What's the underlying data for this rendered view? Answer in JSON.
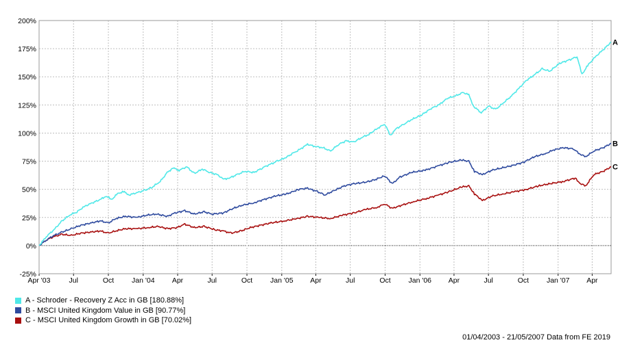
{
  "chart_data": {
    "type": "line",
    "x_range": [
      "2003-04-01",
      "2007-05-21"
    ],
    "ylim": [
      -25,
      200
    ],
    "y_ticks": [
      {
        "value": -25,
        "label": "-25%"
      },
      {
        "value": 0,
        "label": "0%"
      },
      {
        "value": 25,
        "label": "25%"
      },
      {
        "value": 50,
        "label": "50%"
      },
      {
        "value": 75,
        "label": "75%"
      },
      {
        "value": 100,
        "label": "100%"
      },
      {
        "value": 125,
        "label": "125%"
      },
      {
        "value": 150,
        "label": "150%"
      },
      {
        "value": 175,
        "label": "175%"
      },
      {
        "value": 200,
        "label": "200%"
      }
    ],
    "x_ticks": [
      {
        "date": "2003-04-01",
        "label": "Apr '03"
      },
      {
        "date": "2003-07-01",
        "label": "Jul"
      },
      {
        "date": "2003-10-01",
        "label": "Oct"
      },
      {
        "date": "2004-01-01",
        "label": "Jan '04"
      },
      {
        "date": "2004-04-01",
        "label": "Apr"
      },
      {
        "date": "2004-07-01",
        "label": "Jul"
      },
      {
        "date": "2004-10-01",
        "label": "Oct"
      },
      {
        "date": "2005-01-01",
        "label": "Jan '05"
      },
      {
        "date": "2005-04-01",
        "label": "Apr"
      },
      {
        "date": "2005-07-01",
        "label": "Jul"
      },
      {
        "date": "2005-10-01",
        "label": "Oct"
      },
      {
        "date": "2006-01-01",
        "label": "Jan '06"
      },
      {
        "date": "2006-04-01",
        "label": "Apr"
      },
      {
        "date": "2006-07-01",
        "label": "Jul"
      },
      {
        "date": "2006-10-01",
        "label": "Oct"
      },
      {
        "date": "2007-01-01",
        "label": "Jan '07"
      },
      {
        "date": "2007-04-01",
        "label": "Apr"
      }
    ],
    "grid": true,
    "zero_line": "dotted",
    "legend_position": "bottom-left",
    "series": [
      {
        "name": "A - Schroder - Recovery Z Acc in GB [180.88%]",
        "end_label": "A",
        "color": "#4fe8e8",
        "points": [
          [
            "2003-04-01",
            0
          ],
          [
            "2003-04-20",
            8
          ],
          [
            "2003-05-10",
            14
          ],
          [
            "2003-06-01",
            22
          ],
          [
            "2003-06-20",
            27
          ],
          [
            "2003-07-10",
            30
          ],
          [
            "2003-07-31",
            35
          ],
          [
            "2003-08-20",
            38
          ],
          [
            "2003-09-10",
            41
          ],
          [
            "2003-09-25",
            44
          ],
          [
            "2003-10-10",
            41
          ],
          [
            "2003-10-25",
            46
          ],
          [
            "2003-11-10",
            48
          ],
          [
            "2003-11-25",
            45
          ],
          [
            "2003-12-15",
            47
          ],
          [
            "2004-01-05",
            49
          ],
          [
            "2004-01-25",
            52
          ],
          [
            "2004-02-15",
            57
          ],
          [
            "2004-03-05",
            65
          ],
          [
            "2004-03-20",
            69
          ],
          [
            "2004-04-05",
            67
          ],
          [
            "2004-04-25",
            70
          ],
          [
            "2004-05-15",
            64
          ],
          [
            "2004-06-05",
            68
          ],
          [
            "2004-06-25",
            65
          ],
          [
            "2004-07-15",
            63
          ],
          [
            "2004-07-31",
            59
          ],
          [
            "2004-08-15",
            60
          ],
          [
            "2004-09-05",
            63
          ],
          [
            "2004-09-25",
            66
          ],
          [
            "2004-10-20",
            65
          ],
          [
            "2004-11-10",
            69
          ],
          [
            "2004-11-30",
            72
          ],
          [
            "2004-12-20",
            75
          ],
          [
            "2005-01-10",
            78
          ],
          [
            "2005-01-31",
            82
          ],
          [
            "2005-02-20",
            86
          ],
          [
            "2005-03-10",
            90
          ],
          [
            "2005-03-31",
            88
          ],
          [
            "2005-04-20",
            87
          ],
          [
            "2005-05-10",
            84
          ],
          [
            "2005-05-31",
            90
          ],
          [
            "2005-06-20",
            93
          ],
          [
            "2005-07-10",
            92
          ],
          [
            "2005-07-31",
            96
          ],
          [
            "2005-08-20",
            99
          ],
          [
            "2005-09-10",
            104
          ],
          [
            "2005-09-30",
            108
          ],
          [
            "2005-10-15",
            98
          ],
          [
            "2005-10-31",
            104
          ],
          [
            "2005-11-20",
            108
          ],
          [
            "2005-12-10",
            112
          ],
          [
            "2006-01-05",
            116
          ],
          [
            "2006-01-31",
            122
          ],
          [
            "2006-02-20",
            125
          ],
          [
            "2006-03-15",
            131
          ],
          [
            "2006-04-05",
            133
          ],
          [
            "2006-04-25",
            136
          ],
          [
            "2006-05-10",
            134
          ],
          [
            "2006-05-22",
            124
          ],
          [
            "2006-06-12",
            118
          ],
          [
            "2006-07-01",
            124
          ],
          [
            "2006-07-20",
            121
          ],
          [
            "2006-08-10",
            127
          ],
          [
            "2006-08-31",
            133
          ],
          [
            "2006-09-20",
            140
          ],
          [
            "2006-10-10",
            147
          ],
          [
            "2006-10-31",
            152
          ],
          [
            "2006-11-20",
            157
          ],
          [
            "2006-12-10",
            155
          ],
          [
            "2007-01-05",
            162
          ],
          [
            "2007-01-31",
            165
          ],
          [
            "2007-02-20",
            168
          ],
          [
            "2007-03-05",
            152
          ],
          [
            "2007-03-20",
            160
          ],
          [
            "2007-04-10",
            168
          ],
          [
            "2007-04-30",
            174
          ],
          [
            "2007-05-21",
            180.88
          ]
        ]
      },
      {
        "name": "B - MSCI United Kingdom Value in GB [90.77%]",
        "end_label": "B",
        "color": "#2e4a9e",
        "points": [
          [
            "2003-04-01",
            0
          ],
          [
            "2003-04-20",
            5
          ],
          [
            "2003-05-10",
            9
          ],
          [
            "2003-06-01",
            12
          ],
          [
            "2003-06-25",
            15
          ],
          [
            "2003-07-20",
            18
          ],
          [
            "2003-08-15",
            20
          ],
          [
            "2003-09-10",
            22
          ],
          [
            "2003-10-01",
            20
          ],
          [
            "2003-10-20",
            24
          ],
          [
            "2003-11-15",
            26
          ],
          [
            "2003-12-15",
            25
          ],
          [
            "2004-01-10",
            27
          ],
          [
            "2004-02-05",
            28
          ],
          [
            "2004-03-05",
            26
          ],
          [
            "2004-03-25",
            29
          ],
          [
            "2004-04-20",
            31
          ],
          [
            "2004-05-15",
            28
          ],
          [
            "2004-06-10",
            30
          ],
          [
            "2004-07-01",
            28
          ],
          [
            "2004-07-31",
            29
          ],
          [
            "2004-08-25",
            33
          ],
          [
            "2004-09-20",
            36
          ],
          [
            "2004-10-20",
            38
          ],
          [
            "2004-11-15",
            41
          ],
          [
            "2004-12-15",
            44
          ],
          [
            "2005-01-15",
            46
          ],
          [
            "2005-02-15",
            50
          ],
          [
            "2005-03-10",
            51
          ],
          [
            "2005-04-05",
            48
          ],
          [
            "2005-04-25",
            45
          ],
          [
            "2005-05-20",
            49
          ],
          [
            "2005-06-15",
            53
          ],
          [
            "2005-07-10",
            55
          ],
          [
            "2005-08-05",
            56
          ],
          [
            "2005-08-31",
            58
          ],
          [
            "2005-09-30",
            62
          ],
          [
            "2005-10-20",
            55
          ],
          [
            "2005-11-10",
            61
          ],
          [
            "2005-12-10",
            65
          ],
          [
            "2006-01-15",
            67
          ],
          [
            "2006-02-20",
            71
          ],
          [
            "2006-03-20",
            74
          ],
          [
            "2006-04-20",
            76
          ],
          [
            "2006-05-10",
            75
          ],
          [
            "2006-05-25",
            66
          ],
          [
            "2006-06-15",
            63
          ],
          [
            "2006-07-10",
            67
          ],
          [
            "2006-08-05",
            69
          ],
          [
            "2006-09-01",
            71
          ],
          [
            "2006-10-01",
            74
          ],
          [
            "2006-10-31",
            79
          ],
          [
            "2006-11-30",
            82
          ],
          [
            "2006-12-20",
            85
          ],
          [
            "2007-01-15",
            87
          ],
          [
            "2007-02-10",
            86
          ],
          [
            "2007-03-01",
            81
          ],
          [
            "2007-03-15",
            79
          ],
          [
            "2007-04-05",
            84
          ],
          [
            "2007-04-30",
            87
          ],
          [
            "2007-05-21",
            90.77
          ]
        ]
      },
      {
        "name": "C - MSCI United Kingdom Growth in GB [70.02%]",
        "end_label": "C",
        "color": "#a80f0f",
        "points": [
          [
            "2003-04-01",
            0
          ],
          [
            "2003-04-20",
            5
          ],
          [
            "2003-05-10",
            8
          ],
          [
            "2003-06-01",
            10
          ],
          [
            "2003-06-25",
            9
          ],
          [
            "2003-07-20",
            11
          ],
          [
            "2003-08-15",
            12
          ],
          [
            "2003-09-10",
            13
          ],
          [
            "2003-09-30",
            11
          ],
          [
            "2003-10-20",
            13
          ],
          [
            "2003-11-15",
            15
          ],
          [
            "2003-12-15",
            15
          ],
          [
            "2004-01-15",
            16
          ],
          [
            "2004-02-10",
            17
          ],
          [
            "2004-03-05",
            15
          ],
          [
            "2004-03-30",
            16
          ],
          [
            "2004-04-20",
            19
          ],
          [
            "2004-05-15",
            16
          ],
          [
            "2004-06-10",
            17
          ],
          [
            "2004-07-10",
            14
          ],
          [
            "2004-07-31",
            13
          ],
          [
            "2004-08-20",
            11
          ],
          [
            "2004-09-15",
            13
          ],
          [
            "2004-10-10",
            16
          ],
          [
            "2004-11-05",
            18
          ],
          [
            "2004-12-01",
            20
          ],
          [
            "2005-01-10",
            22
          ],
          [
            "2005-02-10",
            24
          ],
          [
            "2005-03-10",
            26
          ],
          [
            "2005-04-10",
            25
          ],
          [
            "2005-05-10",
            24
          ],
          [
            "2005-06-10",
            27
          ],
          [
            "2005-07-10",
            29
          ],
          [
            "2005-08-10",
            32
          ],
          [
            "2005-09-10",
            34
          ],
          [
            "2005-09-30",
            37
          ],
          [
            "2005-10-20",
            33
          ],
          [
            "2005-11-15",
            36
          ],
          [
            "2005-12-15",
            39
          ],
          [
            "2006-01-20",
            42
          ],
          [
            "2006-02-20",
            45
          ],
          [
            "2006-03-20",
            48
          ],
          [
            "2006-04-20",
            52
          ],
          [
            "2006-05-10",
            53
          ],
          [
            "2006-05-25",
            46
          ],
          [
            "2006-06-15",
            40
          ],
          [
            "2006-07-10",
            44
          ],
          [
            "2006-08-10",
            46
          ],
          [
            "2006-09-10",
            48
          ],
          [
            "2006-10-10",
            50
          ],
          [
            "2006-11-10",
            53
          ],
          [
            "2006-12-10",
            55
          ],
          [
            "2007-01-15",
            57
          ],
          [
            "2007-02-15",
            60
          ],
          [
            "2007-03-01",
            55
          ],
          [
            "2007-03-15",
            53
          ],
          [
            "2007-04-05",
            63
          ],
          [
            "2007-04-30",
            66
          ],
          [
            "2007-05-21",
            70.02
          ]
        ]
      }
    ]
  },
  "legend": [
    {
      "label": "A - Schroder - Recovery Z Acc in GB [180.88%]",
      "color": "#4fe8e8"
    },
    {
      "label": "B - MSCI United Kingdom Value in GB [90.77%]",
      "color": "#2e4a9e"
    },
    {
      "label": "C - MSCI United Kingdom Growth in GB [70.02%]",
      "color": "#a80f0f"
    }
  ],
  "footer": "01/04/2003 - 21/05/2007 Data from FE 2019"
}
